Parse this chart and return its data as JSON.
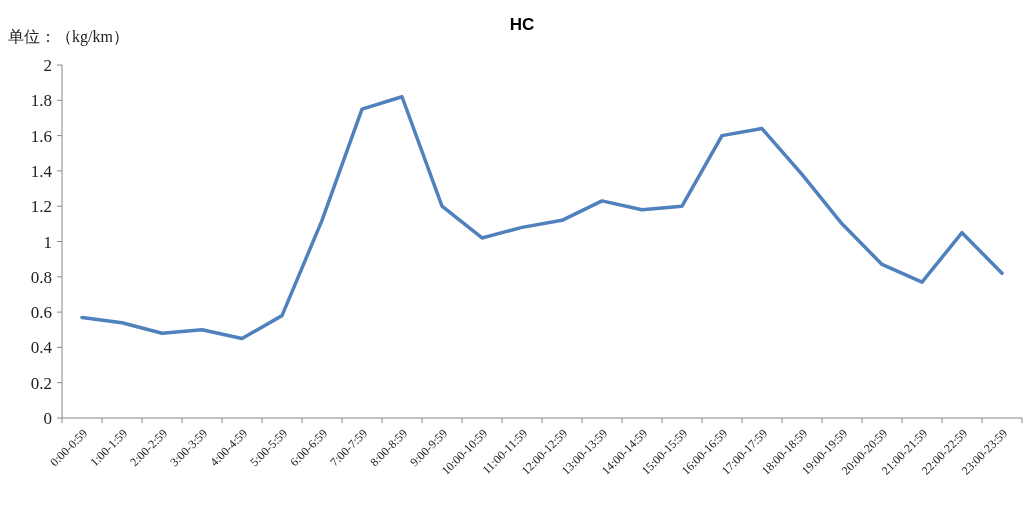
{
  "chart_data": {
    "type": "line",
    "title": "HC",
    "ylabel": "单位：（kg/km）",
    "categories": [
      "0:00-0:59",
      "1:00-1:59",
      "2:00-2:59",
      "3:00-3:59",
      "4:00-4:59",
      "5:00-5:59",
      "6:00-6:59",
      "7:00-7:59",
      "8:00-8:59",
      "9:00-9:59",
      "10:00-10:59",
      "11:00-11:59",
      "12:00-12:59",
      "13:00-13:59",
      "14:00-14:59",
      "15:00-15:59",
      "16:00-16:59",
      "17:00-17:59",
      "18:00-18:59",
      "19:00-19:59",
      "20:00-20:59",
      "21:00-21:59",
      "22:00-22:59",
      "23:00-23:59"
    ],
    "values": [
      0.57,
      0.54,
      0.48,
      0.5,
      0.45,
      0.58,
      1.12,
      1.75,
      1.82,
      1.2,
      1.02,
      1.08,
      1.12,
      1.23,
      1.18,
      1.2,
      1.6,
      1.64,
      1.38,
      1.1,
      0.87,
      0.77,
      1.05,
      0.82
    ],
    "color": "#4f81bd",
    "ylim": [
      0,
      2
    ],
    "yticks": [
      0,
      0.2,
      0.4,
      0.6,
      0.8,
      1,
      1.2,
      1.4,
      1.6,
      1.8,
      2
    ]
  }
}
